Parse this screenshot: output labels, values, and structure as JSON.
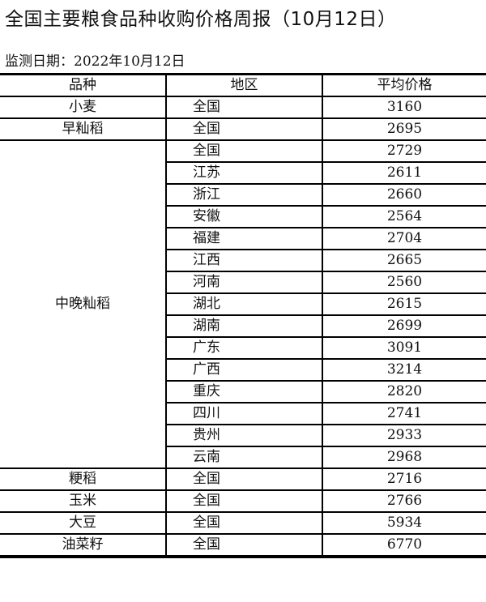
{
  "title": "全国主要粮食品种收购价格周报（10月12日）",
  "monitor_date": "监测日期：2022年10月12日",
  "table": {
    "headers": [
      "品种",
      "地区",
      "平均价格"
    ],
    "groups": [
      {
        "variety": "小麦",
        "rows": [
          {
            "region": "全国",
            "price": "3160"
          }
        ]
      },
      {
        "variety": "早籼稻",
        "rows": [
          {
            "region": "全国",
            "price": "2695"
          }
        ]
      },
      {
        "variety": "中晚籼稻",
        "rows": [
          {
            "region": "全国",
            "price": "2729"
          },
          {
            "region": "江苏",
            "price": "2611"
          },
          {
            "region": "浙江",
            "price": "2660"
          },
          {
            "region": "安徽",
            "price": "2564"
          },
          {
            "region": "福建",
            "price": "2704"
          },
          {
            "region": "江西",
            "price": "2665"
          },
          {
            "region": "河南",
            "price": "2560"
          },
          {
            "region": "湖北",
            "price": "2615"
          },
          {
            "region": "湖南",
            "price": "2699"
          },
          {
            "region": "广东",
            "price": "3091"
          },
          {
            "region": "广西",
            "price": "3214"
          },
          {
            "region": "重庆",
            "price": "2820"
          },
          {
            "region": "四川",
            "price": "2741"
          },
          {
            "region": "贵州",
            "price": "2933"
          },
          {
            "region": "云南",
            "price": "2968"
          }
        ]
      },
      {
        "variety": "粳稻",
        "rows": [
          {
            "region": "全国",
            "price": "2716"
          }
        ]
      },
      {
        "variety": "玉米",
        "rows": [
          {
            "region": "全国",
            "price": "2766"
          }
        ]
      },
      {
        "variety": "大豆",
        "rows": [
          {
            "region": "全国",
            "price": "5934"
          }
        ]
      },
      {
        "variety": "油菜籽",
        "rows": [
          {
            "region": "全国",
            "price": "6770"
          }
        ]
      }
    ]
  }
}
